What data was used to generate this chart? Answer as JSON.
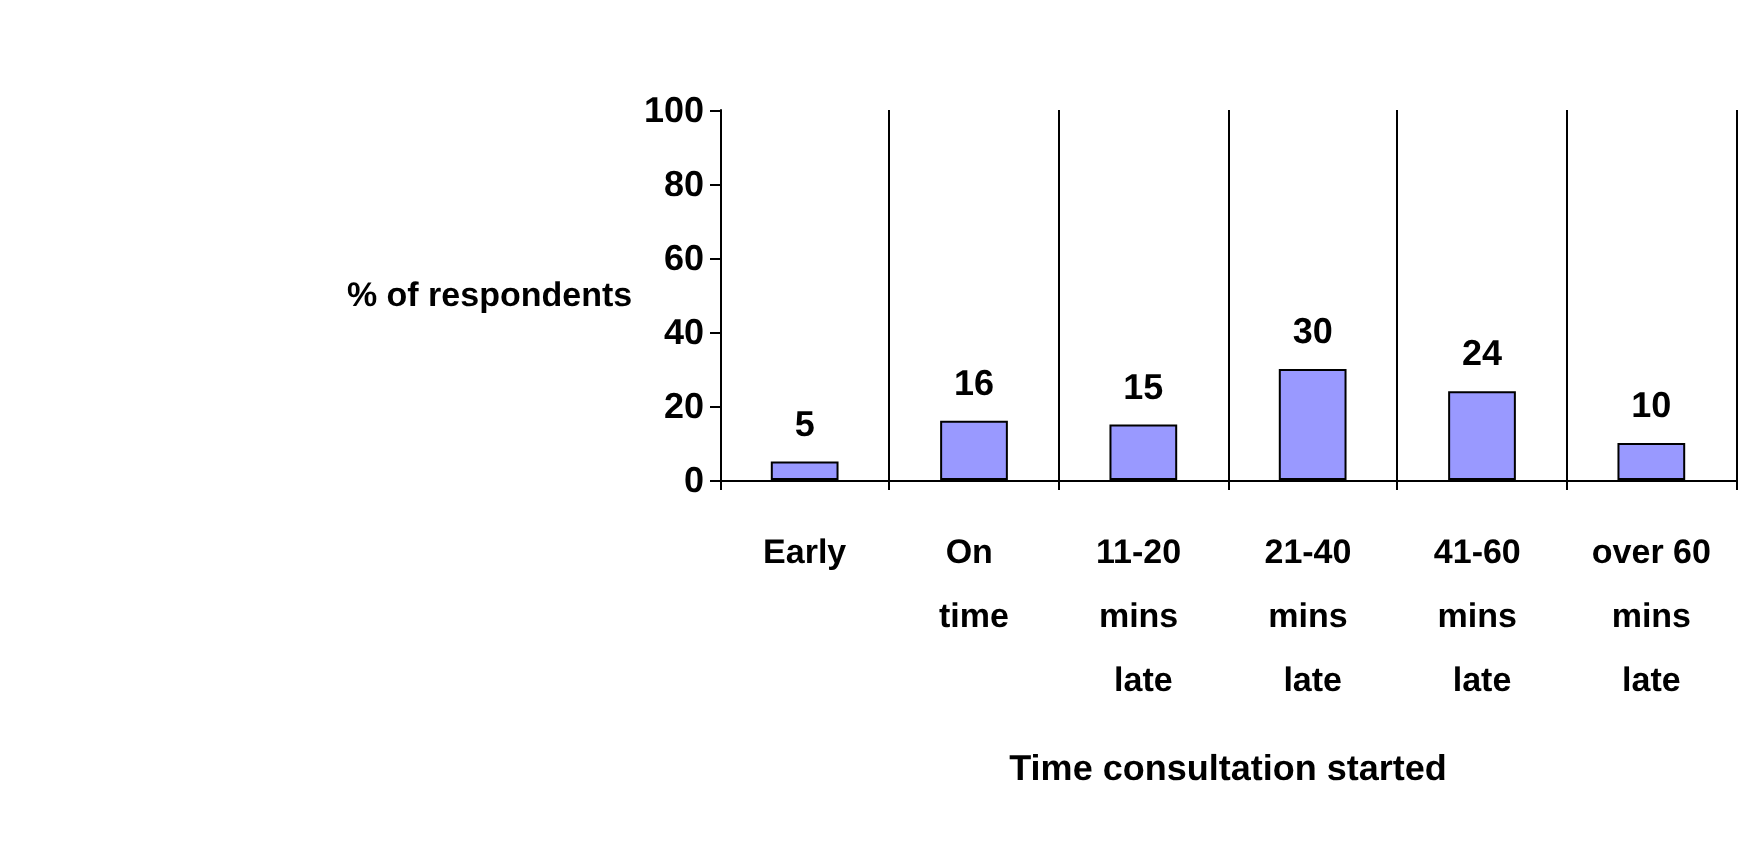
{
  "chart_data": {
    "type": "bar",
    "xlabel": "Time consultation started",
    "ylabel": "% of respondents",
    "categories": [
      "Early",
      "On time",
      "11-20 mins late",
      "21-40 mins late",
      "41-60 mins late",
      "over 60 mins late"
    ],
    "values": [
      5,
      16,
      15,
      30,
      24,
      10
    ],
    "color": "#9999ff",
    "ylim": [
      0,
      100
    ],
    "yticks": [
      0,
      20,
      40,
      60,
      80,
      100
    ],
    "grid": "x",
    "data_labels": true
  }
}
